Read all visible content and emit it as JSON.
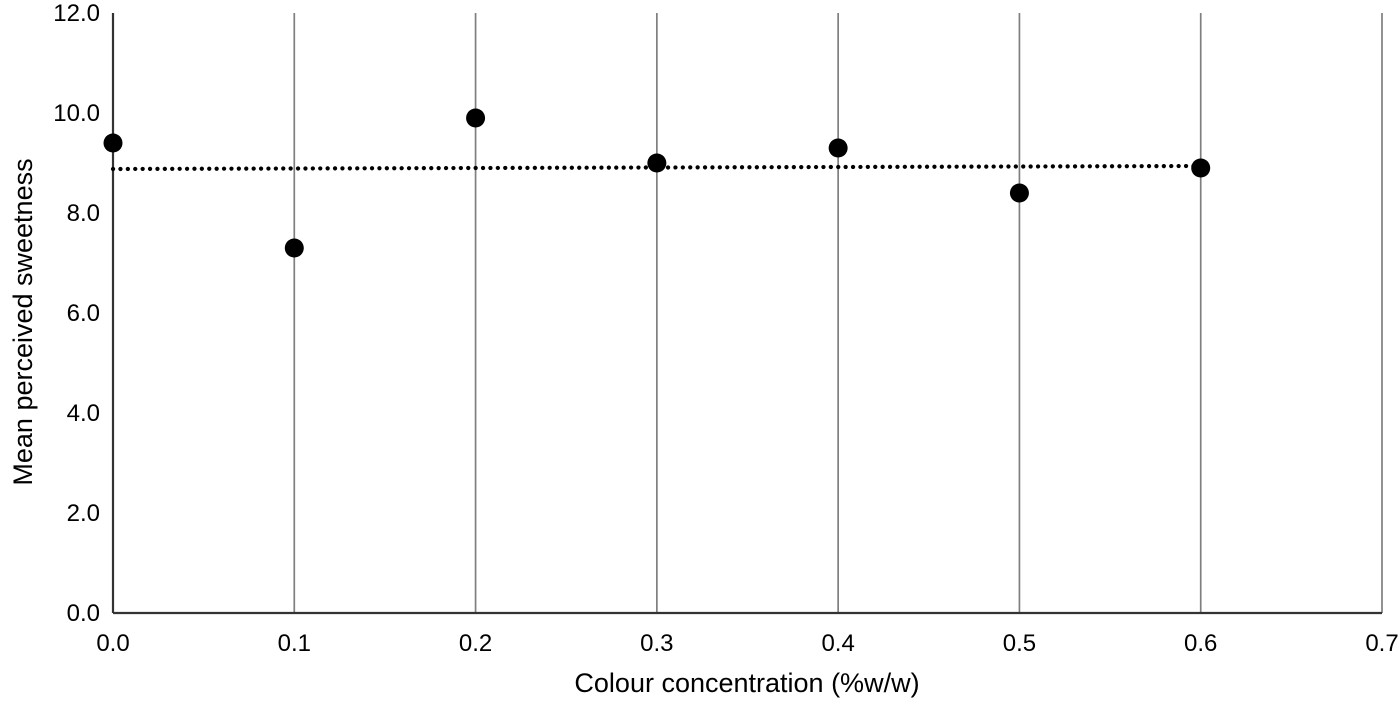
{
  "chart_data": {
    "type": "scatter",
    "title": "",
    "xlabel": "Colour concentration (%w/w)",
    "ylabel": "Mean perceived sweetness",
    "x": [
      0.0,
      0.1,
      0.2,
      0.3,
      0.4,
      0.5,
      0.6
    ],
    "y": [
      9.4,
      7.3,
      9.9,
      9.0,
      9.3,
      8.4,
      8.9
    ],
    "xlim": [
      0.0,
      0.7
    ],
    "ylim": [
      0.0,
      12.0
    ],
    "x_ticks": [
      "0.0",
      "0.1",
      "0.2",
      "0.3",
      "0.4",
      "0.5",
      "0.6",
      "0.7"
    ],
    "y_ticks": [
      "0.0",
      "2.0",
      "4.0",
      "6.0",
      "8.0",
      "10.0",
      "12.0"
    ],
    "gridlines": "vertical-only",
    "legend": "none",
    "trendline": {
      "style": "dotted",
      "x_start": 0.0,
      "y_start": 8.88,
      "x_end": 0.6,
      "y_end": 8.94
    },
    "marker_color": "#000000",
    "trendline_color": "#000000",
    "gridline_color": "#7f7f7f",
    "axis_color": "#333333",
    "background_color": "#ffffff"
  }
}
